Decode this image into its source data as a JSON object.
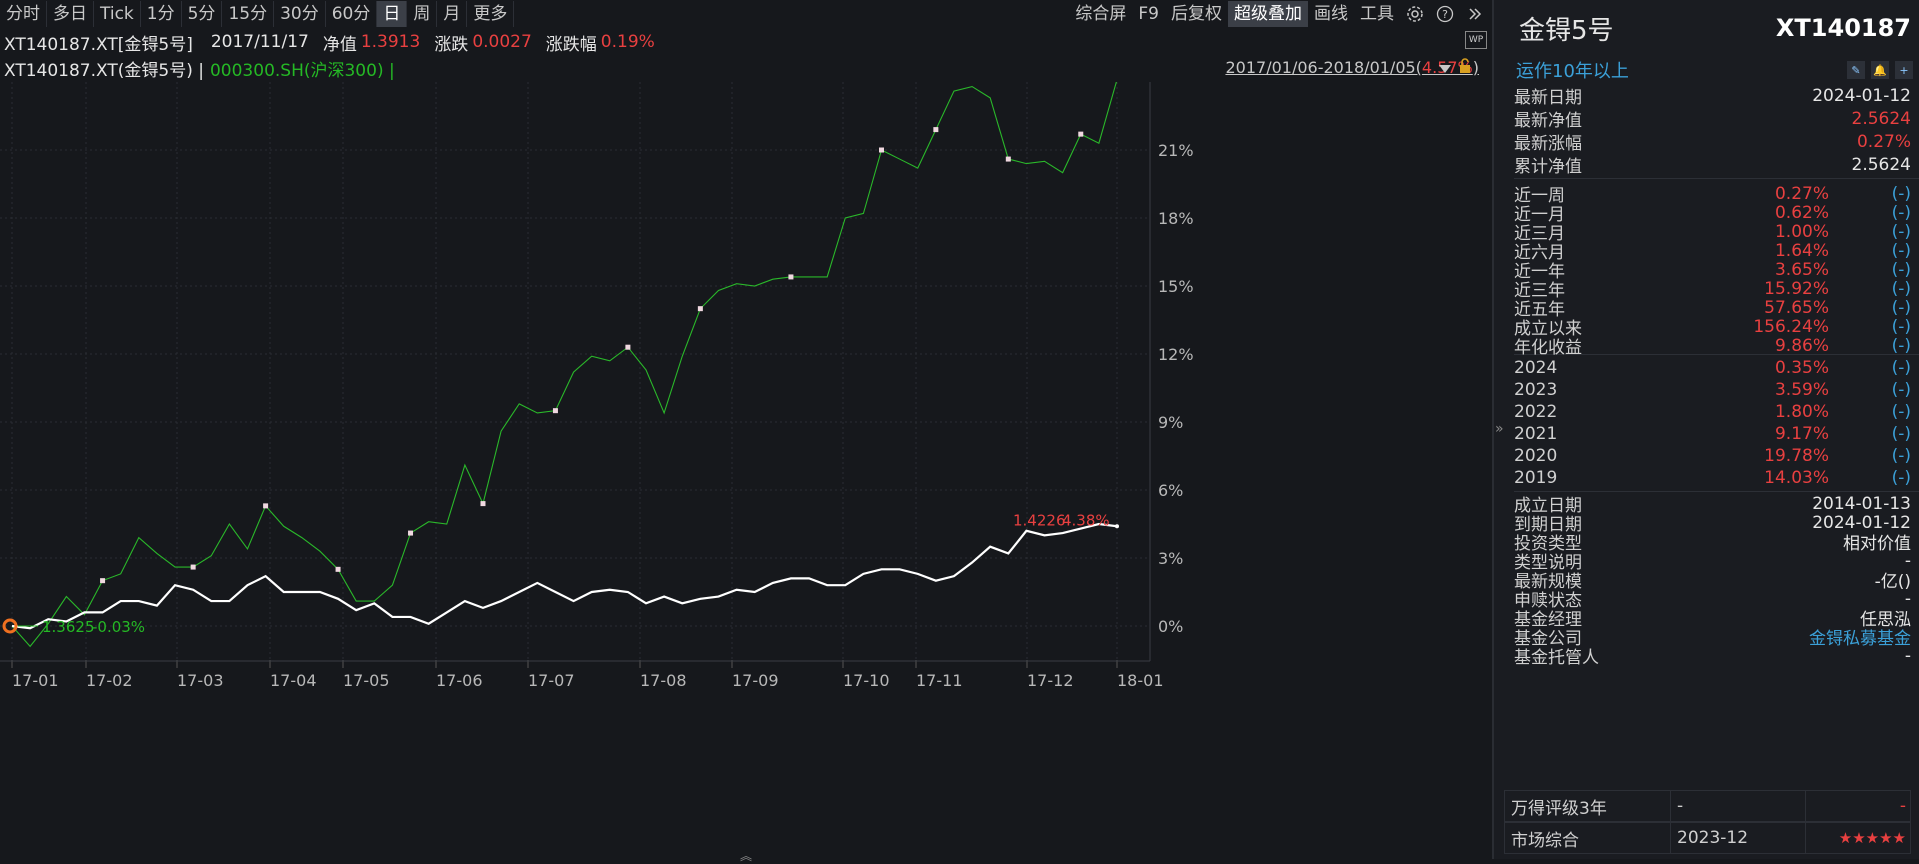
{
  "toolbar": {
    "periods": [
      "分时",
      "多日",
      "Tick",
      "1分",
      "5分",
      "15分",
      "30分",
      "60分",
      "日",
      "周",
      "月",
      "更多"
    ],
    "active_period": "日",
    "right_items": [
      "综合屏",
      "F9",
      "后复权",
      "超级叠加",
      "画线",
      "工具"
    ],
    "active_right": "超级叠加"
  },
  "info": {
    "code": "XT140187.XT[金锝5号]",
    "date": "2017/11/17",
    "nav_label": "净值",
    "nav_value": "1.3913",
    "change_label": "涨跌",
    "change_value": "0.0027",
    "pct_label": "涨跌幅",
    "pct_value": "0.19%"
  },
  "legend": {
    "series1": "XT140187.XT(金锝5号) |",
    "series2": "000300.SH(沪深300) |"
  },
  "range": {
    "text": "2017/01/06-2018/01/05(",
    "pct": "4.57%",
    "close": ")"
  },
  "wp_icon": "WP",
  "chart_data": {
    "type": "line",
    "x_labels": [
      "17-01",
      "17-02",
      "17-03",
      "17-04",
      "17-05",
      "17-06",
      "17-07",
      "17-08",
      "17-09",
      "17-10",
      "17-11",
      "17-12",
      "18-01"
    ],
    "y_ticks": [
      "0%",
      "3%",
      "6%",
      "9%",
      "12%",
      "15%",
      "18%",
      "21%"
    ],
    "ylim": [
      -1.5,
      24
    ],
    "series": [
      {
        "name": "000300.SH(沪深300)",
        "color": "#2ab82a",
        "values": [
          0,
          -0.9,
          0.1,
          1.3,
          0.5,
          2.0,
          2.3,
          3.9,
          3.2,
          2.6,
          2.6,
          3.1,
          4.5,
          3.4,
          5.3,
          4.4,
          3.9,
          3.3,
          2.5,
          1.1,
          1.1,
          1.8,
          4.1,
          4.6,
          4.5,
          7.1,
          5.4,
          8.6,
          9.8,
          9.4,
          9.5,
          11.2,
          11.9,
          11.7,
          12.3,
          11.3,
          9.4,
          11.9,
          14.0,
          14.8,
          15.1,
          15.0,
          15.3,
          15.4,
          15.4,
          15.4,
          18.0,
          18.2,
          21.0,
          20.6,
          20.2,
          21.9,
          23.6,
          23.8,
          23.3,
          20.6,
          20.4,
          20.5,
          20.0,
          21.7,
          21.3,
          24.1
        ]
      },
      {
        "name": "XT140187.XT(金锝5号)",
        "color": "#ffffff",
        "values": [
          0,
          -0.1,
          0.3,
          0.2,
          0.6,
          0.6,
          1.1,
          1.1,
          0.9,
          1.8,
          1.6,
          1.1,
          1.1,
          1.8,
          2.2,
          1.5,
          1.5,
          1.5,
          1.2,
          0.7,
          1.0,
          0.4,
          0.4,
          0.1,
          0.6,
          1.1,
          0.8,
          1.1,
          1.5,
          1.9,
          1.5,
          1.1,
          1.5,
          1.6,
          1.5,
          1.0,
          1.3,
          1.0,
          1.2,
          1.3,
          1.6,
          1.5,
          1.9,
          2.1,
          2.1,
          1.8,
          1.8,
          2.3,
          2.5,
          2.5,
          2.3,
          2.0,
          2.2,
          2.8,
          3.5,
          3.2,
          4.2,
          4.0,
          4.1,
          4.3,
          4.5,
          4.4
        ]
      }
    ],
    "square_markers_green": [
      5,
      10,
      14,
      18,
      22,
      26,
      30,
      34,
      38,
      43,
      48,
      51,
      55,
      59,
      62
    ],
    "annotation_end": {
      "price": "1.4226",
      "pct": "4.38%"
    },
    "annotation_start": {
      "price": "1.3625",
      "pct": "-0.03%"
    }
  },
  "panel": {
    "title": "金锝5号",
    "code": "XT140187",
    "tag": "运作10年以上",
    "stats": [
      {
        "label": "最新日期",
        "value": "2024-01-12",
        "color": "white"
      },
      {
        "label": "最新净值",
        "value": "2.5624",
        "color": "red"
      },
      {
        "label": "最新涨幅",
        "value": "0.27%",
        "color": "red"
      },
      {
        "label": "累计净值",
        "value": "2.5624",
        "color": "white"
      }
    ],
    "returns": [
      {
        "label": "近一周",
        "value": "0.27%",
        "rank": "(-)"
      },
      {
        "label": "近一月",
        "value": "0.62%",
        "rank": "(-)"
      },
      {
        "label": "近三月",
        "value": "1.00%",
        "rank": "(-)"
      },
      {
        "label": "近六月",
        "value": "1.64%",
        "rank": "(-)"
      },
      {
        "label": "近一年",
        "value": "3.65%",
        "rank": "(-)"
      },
      {
        "label": "近三年",
        "value": "15.92%",
        "rank": "(-)"
      },
      {
        "label": "近五年",
        "value": "57.65%",
        "rank": "(-)"
      },
      {
        "label": "成立以来",
        "value": "156.24%",
        "rank": "(-)"
      },
      {
        "label": "年化收益",
        "value": "9.86%",
        "rank": "(-)"
      }
    ],
    "yearly": [
      {
        "label": "2024",
        "value": "0.35%",
        "rank": "(-)"
      },
      {
        "label": "2023",
        "value": "3.59%",
        "rank": "(-)"
      },
      {
        "label": "2022",
        "value": "1.80%",
        "rank": "(-)"
      },
      {
        "label": "2021",
        "value": "9.17%",
        "rank": "(-)"
      },
      {
        "label": "2020",
        "value": "19.78%",
        "rank": "(-)"
      },
      {
        "label": "2019",
        "value": "14.03%",
        "rank": "(-)"
      }
    ],
    "details": [
      {
        "label": "成立日期",
        "value": "2014-01-13",
        "color": "white"
      },
      {
        "label": "到期日期",
        "value": "2024-01-12",
        "color": "white"
      },
      {
        "label": "投资类型",
        "value": "相对价值",
        "color": "white"
      },
      {
        "label": "类型说明",
        "value": "-",
        "color": "white"
      },
      {
        "label": "最新规模",
        "value": "-亿()",
        "color": "white"
      },
      {
        "label": "申赎状态",
        "value": "-",
        "color": "white"
      },
      {
        "label": "基金经理",
        "value": "任思泓",
        "color": "white"
      },
      {
        "label": "基金公司",
        "value": "金锝私募基金",
        "color": "blue"
      },
      {
        "label": "基金托管人",
        "value": "-",
        "color": "white"
      }
    ],
    "rating": {
      "label": "万得评级3年",
      "value": "-",
      "extra": "-"
    },
    "market": {
      "label": "市场综合",
      "value": "2023-12",
      "stars": "★★★★★"
    }
  }
}
